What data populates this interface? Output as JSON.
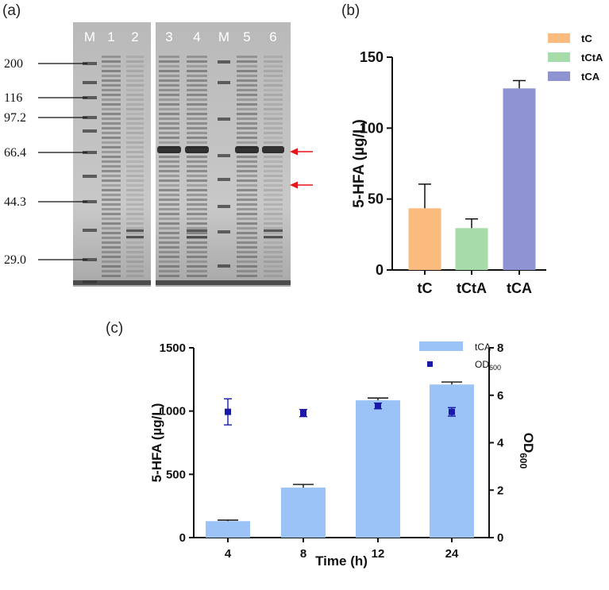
{
  "panel_a": {
    "label": "(a)",
    "lanes": [
      "M",
      "1",
      "2",
      "3",
      "4",
      "M",
      "5",
      "6"
    ],
    "markers": [
      "200",
      "116",
      "97.2",
      "66.4",
      "44.3",
      "29.0"
    ],
    "arrow_color": "#e8141c"
  },
  "chart_data": [
    {
      "panel": "(b)",
      "type": "bar",
      "title": "",
      "xlabel": "",
      "ylabel": "5-HFA (µg/L)",
      "categories": [
        "tC",
        "tCtA",
        "tCA"
      ],
      "values": [
        43.5,
        29.5,
        128
      ],
      "errors": [
        17,
        6.5,
        5.5
      ],
      "colors": [
        "#fbbb7e",
        "#a6dca9",
        "#8e94d3"
      ],
      "ylim": [
        0,
        150
      ],
      "yticks": [
        "0",
        "50",
        "100",
        "150"
      ],
      "legend": [
        "tC",
        "tCtA",
        "tCA"
      ],
      "legend_position": "top-right"
    },
    {
      "panel": "(c)",
      "type": "bar",
      "xlabel": "Time (h)",
      "ylabel": "5-HFA (µg/L)",
      "y2label": "OD600",
      "categories": [
        "4",
        "8",
        "12",
        "24"
      ],
      "series": [
        {
          "name": "tCA",
          "kind": "bar",
          "axis": "left",
          "color": "#9bc3f7",
          "values": [
            130,
            395,
            1085,
            1210
          ],
          "errors": [
            8,
            25,
            18,
            20
          ]
        },
        {
          "name": "OD600",
          "kind": "scatter",
          "axis": "right",
          "color": "#1a1aa6",
          "values": [
            5.3,
            5.25,
            5.55,
            5.3
          ],
          "errors": [
            0.55,
            0.15,
            0.12,
            0.18
          ]
        }
      ],
      "ylim": [
        0,
        1500
      ],
      "y2lim": [
        0,
        8
      ],
      "yticks": [
        "0",
        "500",
        "1000",
        "1500"
      ],
      "y2ticks": [
        "0",
        "2",
        "4",
        "6",
        "8"
      ],
      "legend": [
        "tCA",
        "OD600"
      ],
      "legend_position": "top-right"
    }
  ]
}
